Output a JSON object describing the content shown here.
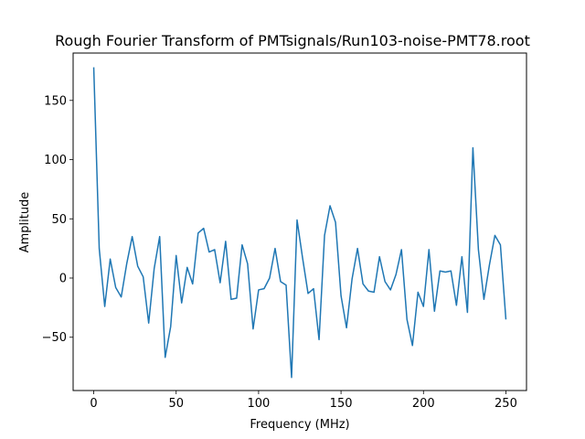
{
  "chart_data": {
    "type": "line",
    "title": "Rough Fourier Transform of PMTsignals/Run103-noise-PMT78.root",
    "xlabel": "Frequency (MHz)",
    "ylabel": "Amplitude",
    "xlim": [
      -12.5,
      262.5
    ],
    "ylim": [
      -95,
      190
    ],
    "xticks": [
      0,
      50,
      100,
      150,
      200,
      250
    ],
    "xtick_labels": [
      "0",
      "50",
      "100",
      "150",
      "200",
      "250"
    ],
    "yticks": [
      -50,
      0,
      50,
      100,
      150
    ],
    "ytick_labels": [
      "−50",
      "0",
      "50",
      "100",
      "150"
    ],
    "grid": false,
    "legend": false,
    "series": [
      {
        "color": "#1f77b4",
        "x": [
          0,
          3.33,
          6.67,
          10,
          13.33,
          16.67,
          20,
          23.33,
          26.67,
          30,
          33.33,
          36.67,
          40,
          43.33,
          46.67,
          50,
          53.33,
          56.67,
          60,
          63.33,
          66.67,
          70,
          73.33,
          76.67,
          80,
          83.33,
          86.67,
          90,
          93.33,
          96.67,
          100,
          103.33,
          106.67,
          110,
          113.33,
          116.67,
          120,
          123.33,
          126.67,
          130,
          133.33,
          136.67,
          140,
          143.33,
          146.67,
          150,
          153.33,
          156.67,
          160,
          163.33,
          166.67,
          170,
          173.33,
          176.67,
          180,
          183.33,
          186.67,
          190,
          193.33,
          196.67,
          200,
          203.33,
          206.67,
          210,
          213.33,
          216.67,
          220,
          223.33,
          226.67,
          230,
          233.33,
          236.67,
          240,
          243.33,
          246.67,
          250
        ],
        "y": [
          178,
          25,
          -24,
          16,
          -8,
          -16,
          12,
          35,
          10,
          1,
          -38,
          8,
          35,
          -67,
          -41,
          19,
          -21,
          9,
          -5,
          38,
          42,
          22,
          24,
          -4,
          31,
          -18,
          -17,
          28,
          12,
          -43,
          -10,
          -9,
          0,
          25,
          -3,
          -6,
          -84,
          49,
          17,
          -13,
          -9,
          -52,
          36,
          61,
          47,
          -15,
          -42,
          -1,
          25,
          -5,
          -11,
          -12,
          18,
          -3,
          -10,
          3,
          24,
          -35,
          -57,
          -12,
          -24,
          24,
          -28,
          6,
          5,
          6,
          -23,
          18,
          -29,
          110,
          24,
          -18,
          11,
          36,
          28,
          -35
        ]
      }
    ]
  }
}
